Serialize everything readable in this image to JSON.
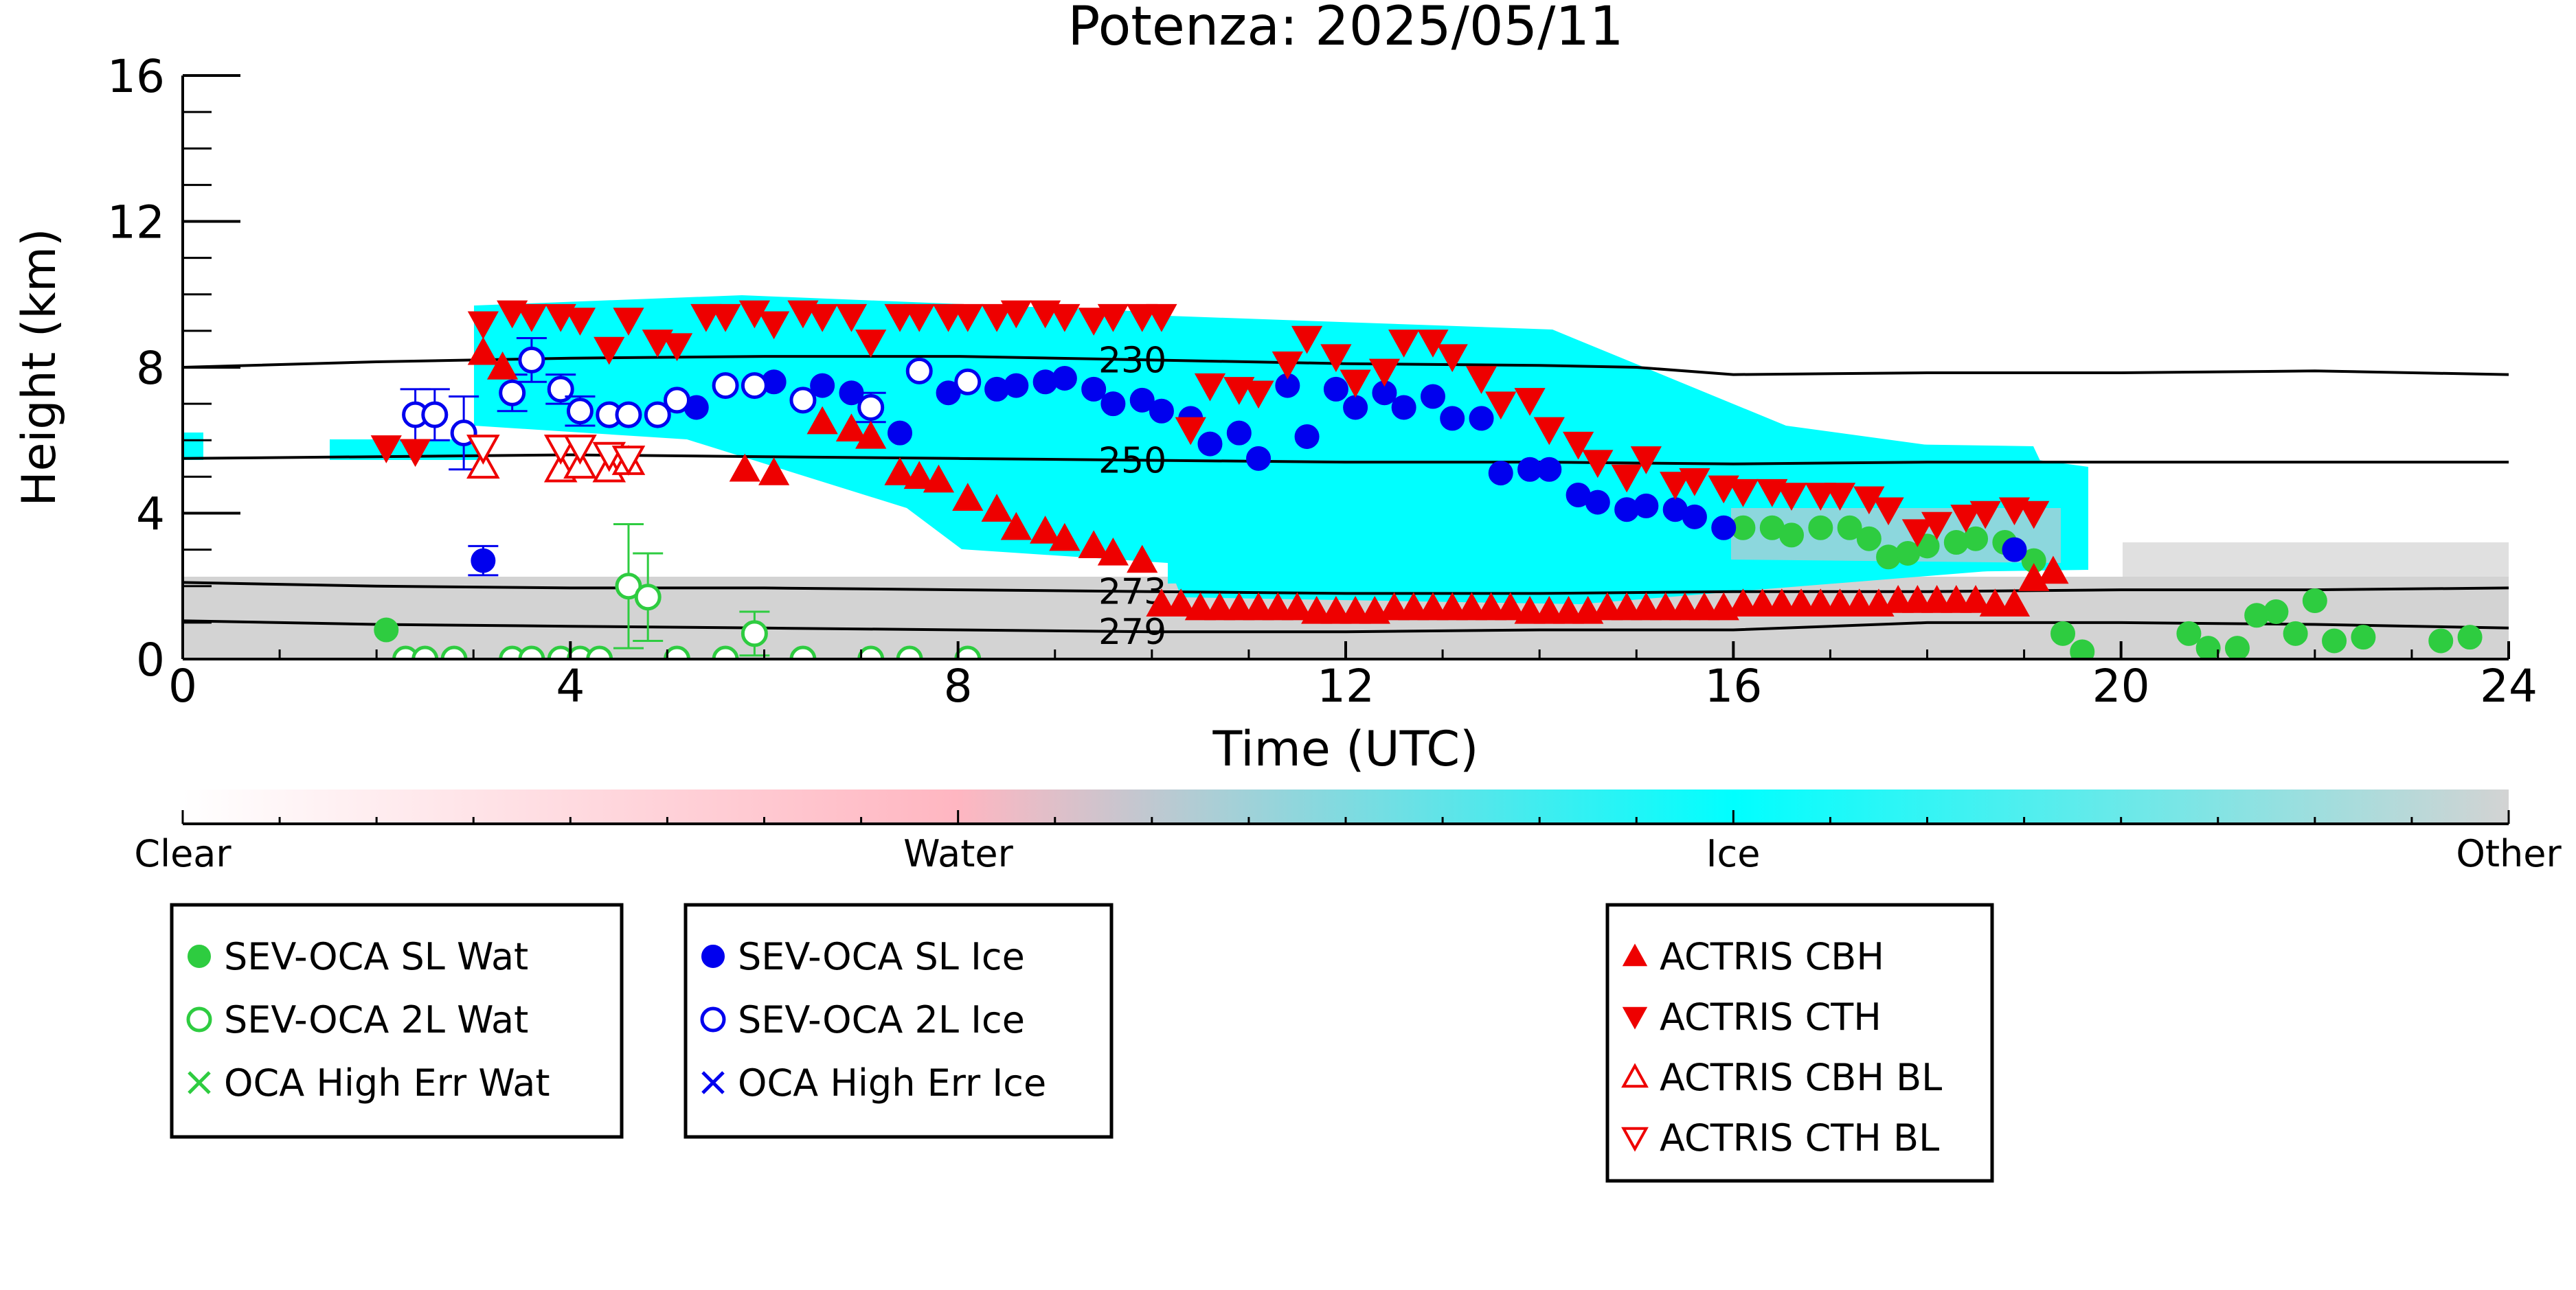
{
  "chart_data": {
    "type": "scatter",
    "title": "Potenza: 2025/05/11",
    "xlabel": "Time (UTC)",
    "ylabel": "Height (km)",
    "xlim": [
      0,
      24
    ],
    "ylim": [
      0,
      16
    ],
    "xticks": [
      "0",
      "4",
      "8",
      "12",
      "16",
      "20",
      "24"
    ],
    "yticks": [
      "0",
      "4",
      "8",
      "12",
      "16"
    ],
    "grid": false,
    "colorbar": {
      "labels": [
        "Clear",
        "Water",
        "Ice",
        "Other"
      ],
      "colors": [
        "#ffffff",
        "#ffb6c1",
        "#00ffff",
        "#d3d3d3"
      ]
    },
    "contours": [
      {
        "label": "230",
        "points": [
          [
            0,
            8.0
          ],
          [
            2,
            8.15
          ],
          [
            4,
            8.25
          ],
          [
            6,
            8.3
          ],
          [
            8,
            8.3
          ],
          [
            10,
            8.2
          ],
          [
            12,
            8.1
          ],
          [
            14,
            8.05
          ],
          [
            15,
            8.0
          ],
          [
            16,
            7.8
          ],
          [
            18,
            7.85
          ],
          [
            20,
            7.85
          ],
          [
            22,
            7.9
          ],
          [
            24,
            7.8
          ]
        ]
      },
      {
        "label": "250",
        "points": [
          [
            0,
            5.5
          ],
          [
            2,
            5.55
          ],
          [
            4,
            5.6
          ],
          [
            6,
            5.55
          ],
          [
            8,
            5.5
          ],
          [
            10,
            5.45
          ],
          [
            12,
            5.4
          ],
          [
            14,
            5.4
          ],
          [
            16,
            5.35
          ],
          [
            18,
            5.4
          ],
          [
            20,
            5.4
          ],
          [
            22,
            5.4
          ],
          [
            24,
            5.4
          ]
        ]
      },
      {
        "label": "273",
        "points": [
          [
            0,
            2.1
          ],
          [
            2,
            2.0
          ],
          [
            4,
            1.95
          ],
          [
            6,
            1.95
          ],
          [
            8,
            1.9
          ],
          [
            10,
            1.85
          ],
          [
            12,
            1.8
          ],
          [
            14,
            1.8
          ],
          [
            16,
            1.85
          ],
          [
            18,
            1.85
          ],
          [
            20,
            1.9
          ],
          [
            22,
            1.9
          ],
          [
            24,
            1.95
          ]
        ]
      },
      {
        "label": "279",
        "points": [
          [
            0,
            1.05
          ],
          [
            2,
            0.95
          ],
          [
            4,
            0.9
          ],
          [
            6,
            0.85
          ],
          [
            8,
            0.8
          ],
          [
            10,
            0.75
          ],
          [
            12,
            0.75
          ],
          [
            14,
            0.8
          ],
          [
            16,
            0.8
          ],
          [
            18,
            1.0
          ],
          [
            20,
            1.0
          ],
          [
            22,
            0.95
          ],
          [
            24,
            0.85
          ]
        ]
      }
    ],
    "series": [
      {
        "name": "SEV-OCA SL Wat",
        "marker": "circle-filled",
        "color": "#2ecc40",
        "x": [
          2.1,
          16.1,
          16.4,
          16.6,
          16.9,
          17.2,
          17.4,
          17.6,
          17.8,
          18.0,
          18.3,
          18.5,
          18.8,
          19.1,
          19.4,
          19.6,
          20.7,
          20.9,
          21.2,
          21.4,
          21.6,
          21.8,
          22.0,
          22.2,
          22.5,
          23.3,
          23.6
        ],
        "y": [
          0.8,
          3.6,
          3.6,
          3.4,
          3.6,
          3.6,
          3.3,
          2.8,
          2.9,
          3.1,
          3.2,
          3.3,
          3.2,
          2.7,
          0.7,
          0.2,
          0.7,
          0.3,
          0.3,
          1.2,
          1.3,
          0.7,
          1.6,
          0.5,
          0.6,
          0.5,
          0.6
        ]
      },
      {
        "name": "SEV-OCA 2L Wat",
        "marker": "circle-open",
        "color": "#2ecc40",
        "x": [
          2.3,
          2.5,
          2.8,
          3.4,
          3.6,
          3.9,
          4.1,
          4.3,
          4.6,
          4.8,
          5.1,
          5.6,
          5.9,
          6.4,
          7.1,
          7.5,
          8.1
        ],
        "y": [
          0.0,
          0.0,
          0.0,
          0.0,
          0.0,
          0.0,
          0.0,
          0.0,
          2.0,
          1.7,
          0.0,
          0.0,
          0.7,
          0.0,
          0.0,
          0.0,
          0.0
        ],
        "err": [
          0,
          0,
          0,
          0,
          0,
          0,
          0,
          0,
          1.7,
          1.2,
          0,
          0,
          0.6,
          0,
          0,
          0,
          0
        ]
      },
      {
        "name": "OCA High Err Wat",
        "marker": "x",
        "color": "#2ecc40",
        "x": [],
        "y": []
      },
      {
        "name": "SEV-OCA SL Ice",
        "marker": "circle-filled",
        "color": "#0000ee",
        "x": [
          3.1,
          5.3,
          6.1,
          6.6,
          6.9,
          7.4,
          7.9,
          8.4,
          8.6,
          8.9,
          9.1,
          9.4,
          9.6,
          9.9,
          10.1,
          10.4,
          10.6,
          10.9,
          11.1,
          11.4,
          11.6,
          11.9,
          12.1,
          12.4,
          12.6,
          12.9,
          13.1,
          13.4,
          13.6,
          13.9,
          14.1,
          14.4,
          14.6,
          14.9,
          15.1,
          15.4,
          15.6,
          15.9,
          18.9
        ],
        "y": [
          2.7,
          6.9,
          7.6,
          7.5,
          7.3,
          6.2,
          7.3,
          7.4,
          7.5,
          7.6,
          7.7,
          7.4,
          7.0,
          7.1,
          6.8,
          6.6,
          5.9,
          6.2,
          5.5,
          7.5,
          6.1,
          7.4,
          6.9,
          7.3,
          6.9,
          7.2,
          6.6,
          6.6,
          5.1,
          5.2,
          5.2,
          4.5,
          4.3,
          4.1,
          4.2,
          4.1,
          3.9,
          3.6,
          3.0
        ],
        "err": [
          0.4,
          0,
          0,
          0,
          0,
          0,
          0,
          0,
          0,
          0,
          0,
          0,
          0,
          0,
          0,
          0,
          0,
          0,
          0,
          0,
          0,
          0,
          0,
          0,
          0,
          0,
          0,
          0,
          0,
          0,
          0,
          0,
          0,
          0,
          0,
          0,
          0,
          0,
          0
        ]
      },
      {
        "name": "SEV-OCA 2L Ice",
        "marker": "circle-open",
        "color": "#0000ee",
        "x": [
          2.4,
          2.6,
          2.9,
          3.4,
          3.6,
          3.9,
          4.1,
          4.4,
          4.6,
          4.9,
          5.1,
          5.6,
          5.9,
          6.4,
          7.1,
          7.6,
          8.1
        ],
        "y": [
          6.7,
          6.7,
          6.2,
          7.3,
          8.2,
          7.4,
          6.8,
          6.7,
          6.7,
          6.7,
          7.1,
          7.5,
          7.5,
          7.1,
          6.9,
          7.9,
          7.6
        ],
        "err": [
          0.7,
          0.7,
          1.0,
          0.5,
          0.6,
          0.4,
          0.4,
          0,
          0,
          0,
          0,
          0,
          0,
          0,
          0.4,
          0,
          0
        ]
      },
      {
        "name": "OCA High Err Ice",
        "marker": "x",
        "color": "#0000ee",
        "x": [],
        "y": []
      },
      {
        "name": "ACTRIS CBH",
        "marker": "triangle-up-filled",
        "color": "#ee0000",
        "x": [
          3.1,
          3.3,
          5.8,
          6.1,
          6.6,
          6.9,
          7.1,
          7.4,
          7.6,
          7.8,
          8.1,
          8.4,
          8.6,
          8.9,
          9.1,
          9.4,
          9.6,
          9.9,
          10.1,
          10.3,
          10.5,
          10.7,
          10.9,
          11.1,
          11.3,
          11.5,
          11.7,
          11.9,
          12.1,
          12.3,
          12.5,
          12.7,
          12.9,
          13.1,
          13.3,
          13.5,
          13.7,
          13.9,
          14.1,
          14.3,
          14.5,
          14.7,
          14.9,
          15.1,
          15.3,
          15.5,
          15.7,
          15.9,
          16.1,
          16.3,
          16.5,
          16.7,
          16.9,
          17.1,
          17.3,
          17.5,
          17.7,
          17.9,
          18.1,
          18.3,
          18.5,
          18.7,
          18.9,
          19.1,
          19.3
        ],
        "y": [
          8.4,
          8.0,
          5.2,
          5.1,
          6.5,
          6.3,
          6.1,
          5.1,
          5.0,
          4.9,
          4.4,
          4.1,
          3.6,
          3.5,
          3.3,
          3.1,
          2.9,
          2.7,
          1.5,
          1.5,
          1.4,
          1.4,
          1.4,
          1.4,
          1.4,
          1.4,
          1.3,
          1.3,
          1.3,
          1.3,
          1.4,
          1.4,
          1.4,
          1.4,
          1.4,
          1.4,
          1.4,
          1.3,
          1.3,
          1.3,
          1.3,
          1.4,
          1.4,
          1.4,
          1.4,
          1.4,
          1.4,
          1.4,
          1.5,
          1.5,
          1.5,
          1.5,
          1.5,
          1.5,
          1.5,
          1.5,
          1.6,
          1.6,
          1.6,
          1.6,
          1.6,
          1.5,
          1.5,
          2.2,
          2.4
        ]
      },
      {
        "name": "ACTRIS CTH",
        "marker": "triangle-down-filled",
        "color": "#ee0000",
        "x": [
          2.1,
          2.4,
          3.1,
          3.4,
          3.6,
          3.9,
          4.1,
          4.4,
          4.6,
          4.9,
          5.1,
          5.4,
          5.6,
          5.9,
          6.1,
          6.4,
          6.6,
          6.9,
          7.1,
          7.4,
          7.6,
          7.9,
          8.1,
          8.4,
          8.6,
          8.9,
          9.1,
          9.4,
          9.6,
          9.9,
          10.1,
          10.4,
          10.6,
          10.9,
          11.1,
          11.4,
          11.6,
          11.9,
          12.1,
          12.4,
          12.6,
          12.9,
          13.1,
          13.4,
          13.6,
          13.9,
          14.1,
          14.4,
          14.6,
          14.9,
          15.1,
          15.4,
          15.6,
          15.9,
          16.1,
          16.4,
          16.6,
          16.9,
          17.1,
          17.4,
          17.6,
          17.9,
          18.1,
          18.4,
          18.6,
          18.9,
          19.1
        ],
        "y": [
          5.8,
          5.7,
          9.2,
          9.5,
          9.4,
          9.4,
          9.3,
          8.5,
          9.3,
          8.7,
          8.6,
          9.4,
          9.4,
          9.5,
          9.2,
          9.5,
          9.4,
          9.4,
          8.7,
          9.4,
          9.4,
          9.4,
          9.4,
          9.4,
          9.5,
          9.5,
          9.4,
          9.3,
          9.4,
          9.4,
          9.4,
          6.3,
          7.5,
          7.4,
          7.3,
          8.1,
          8.8,
          8.3,
          7.6,
          7.9,
          8.7,
          8.7,
          8.3,
          7.7,
          7.0,
          7.1,
          6.3,
          5.9,
          5.4,
          5.0,
          5.5,
          4.8,
          4.9,
          4.7,
          4.6,
          4.6,
          4.5,
          4.5,
          4.5,
          4.4,
          4.1,
          3.5,
          3.7,
          3.9,
          4.0,
          4.1,
          4.0
        ]
      },
      {
        "name": "ACTRIS CBH BL",
        "marker": "triangle-up-open",
        "color": "#ee0000",
        "x": [
          3.1,
          3.9,
          4.1,
          4.4,
          4.6
        ],
        "y": [
          5.3,
          5.2,
          5.3,
          5.2,
          5.4
        ]
      },
      {
        "name": "ACTRIS CTH BL",
        "marker": "triangle-down-open",
        "color": "#ee0000",
        "x": [
          3.1,
          3.9,
          4.1,
          4.4,
          4.6
        ],
        "y": [
          5.8,
          5.8,
          5.8,
          5.6,
          5.5
        ]
      }
    ],
    "legend_groups": [
      [
        "SEV-OCA SL Wat",
        "SEV-OCA 2L Wat",
        "OCA High Err Wat"
      ],
      [
        "SEV-OCA SL Ice",
        "SEV-OCA 2L Ice",
        "OCA High Err Ice"
      ],
      [
        "ACTRIS CBH",
        "ACTRIS CTH",
        "ACTRIS CBH BL",
        "ACTRIS CTH BL"
      ]
    ]
  }
}
